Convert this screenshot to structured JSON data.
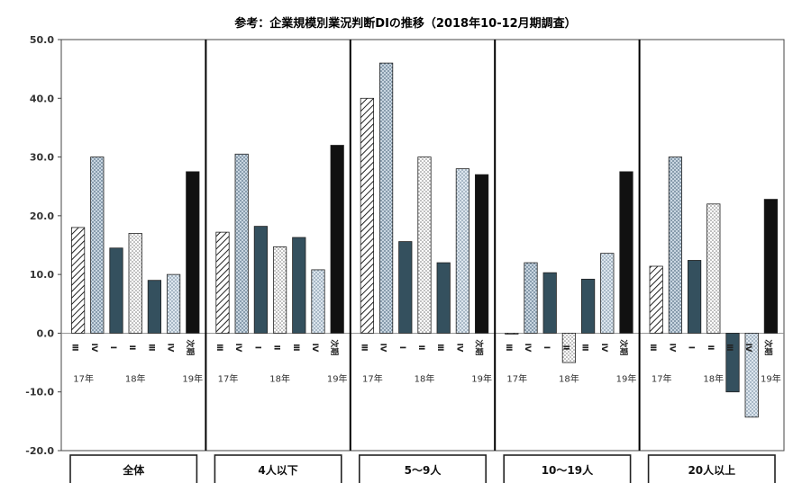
{
  "chart_data": {
    "type": "bar",
    "title": "参考：企業規模別業況判断DIの推移（2018年10-12月期調査）",
    "ylim": [
      -20,
      50
    ],
    "yticks": [
      "50.0",
      "40.0",
      "30.0",
      "20.0",
      "10.0",
      "0.0",
      "-10.0",
      "-20.0"
    ],
    "quarter_labels": [
      "Ⅲ",
      "Ⅳ",
      "Ⅰ",
      "Ⅱ",
      "Ⅲ",
      "Ⅳ",
      "次期"
    ],
    "year_labels": [
      "17年",
      "18年",
      "19年"
    ],
    "groups": [
      {
        "name": "全体",
        "values": [
          18.0,
          30.0,
          14.5,
          17.0,
          9.0,
          10.0,
          27.5
        ]
      },
      {
        "name": "4人以下",
        "values": [
          17.2,
          30.5,
          18.2,
          14.7,
          16.3,
          10.8,
          32.0
        ]
      },
      {
        "name": "5～9人",
        "values": [
          40.0,
          46.0,
          15.6,
          30.0,
          12.0,
          28.0,
          27.0
        ]
      },
      {
        "name": "10～19人",
        "values": [
          0.0,
          12.0,
          10.3,
          -5.0,
          9.2,
          13.6,
          27.5
        ]
      },
      {
        "name": "20人以上",
        "values": [
          11.4,
          30.0,
          12.4,
          22.0,
          -10.0,
          -14.3,
          22.8
        ]
      }
    ],
    "bar_styles": [
      {
        "pattern": "diag",
        "color": "#222222"
      },
      {
        "pattern": "dots",
        "color": "#8fa6b8"
      },
      {
        "pattern": "solid",
        "color": "#34505e"
      },
      {
        "pattern": "dots",
        "color": "#aaaaaa"
      },
      {
        "pattern": "solid",
        "color": "#34505e"
      },
      {
        "pattern": "dots",
        "color": "#a8bccc"
      },
      {
        "pattern": "solid",
        "color": "#111111"
      }
    ]
  }
}
